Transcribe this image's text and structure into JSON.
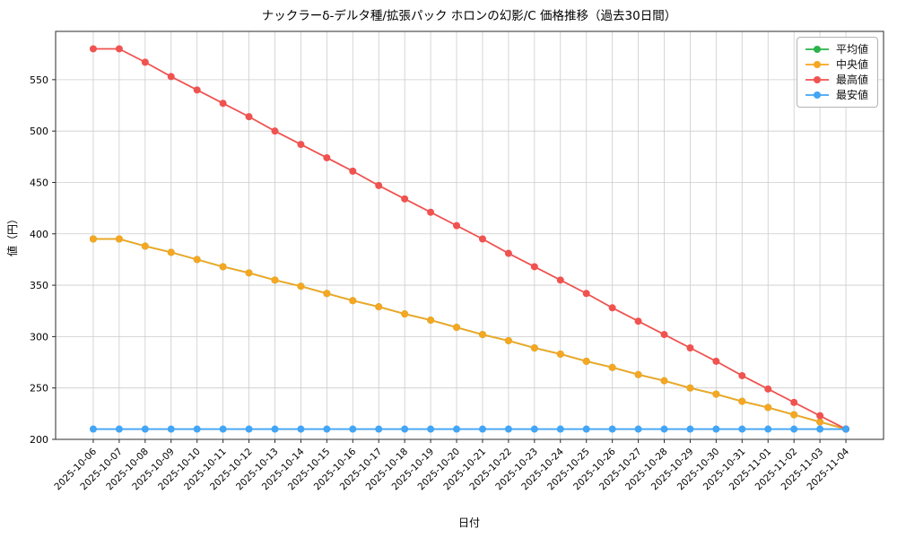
{
  "chart_data": {
    "type": "line",
    "title": "ナックラーδ-デルタ種/拡張パック ホロンの幻影/C 価格推移（過去30日間）",
    "xlabel": "日付",
    "ylabel": "値（円）",
    "x": [
      "2025-10-06",
      "2025-10-07",
      "2025-10-08",
      "2025-10-09",
      "2025-10-10",
      "2025-10-11",
      "2025-10-12",
      "2025-10-13",
      "2025-10-14",
      "2025-10-15",
      "2025-10-16",
      "2025-10-17",
      "2025-10-18",
      "2025-10-19",
      "2025-10-20",
      "2025-10-21",
      "2025-10-22",
      "2025-10-23",
      "2025-10-24",
      "2025-10-25",
      "2025-10-26",
      "2025-10-27",
      "2025-10-28",
      "2025-10-29",
      "2025-10-30",
      "2025-10-31",
      "2025-11-01",
      "2025-11-02",
      "2025-11-03",
      "2025-11-04"
    ],
    "yticks": [
      200,
      250,
      300,
      350,
      400,
      450,
      500,
      550
    ],
    "ylim": [
      200,
      597
    ],
    "grid": true,
    "legend_position": "upper right",
    "series": [
      {
        "key": "average",
        "name": "平均値",
        "color": "#2cb34a",
        "values": [
          395,
          395,
          388,
          382,
          375,
          368,
          362,
          355,
          349,
          342,
          335,
          329,
          322,
          316,
          309,
          302,
          296,
          289,
          283,
          276,
          270,
          263,
          257,
          250,
          244,
          237,
          231,
          224,
          217,
          210
        ]
      },
      {
        "key": "median",
        "name": "中央値",
        "color": "#f5a623",
        "values": [
          395,
          395,
          388,
          382,
          375,
          368,
          362,
          355,
          349,
          342,
          335,
          329,
          322,
          316,
          309,
          302,
          296,
          289,
          283,
          276,
          270,
          263,
          257,
          250,
          244,
          237,
          231,
          224,
          217,
          210
        ]
      },
      {
        "key": "max",
        "name": "最高値",
        "color": "#ef5350",
        "values": [
          580,
          580,
          567,
          553,
          540,
          527,
          514,
          500,
          487,
          474,
          461,
          447,
          434,
          421,
          408,
          395,
          381,
          368,
          355,
          342,
          328,
          315,
          302,
          289,
          276,
          262,
          249,
          236,
          223,
          210
        ]
      },
      {
        "key": "min",
        "name": "最安値",
        "color": "#42a5f5",
        "values": [
          210,
          210,
          210,
          210,
          210,
          210,
          210,
          210,
          210,
          210,
          210,
          210,
          210,
          210,
          210,
          210,
          210,
          210,
          210,
          210,
          210,
          210,
          210,
          210,
          210,
          210,
          210,
          210,
          210,
          210
        ]
      }
    ]
  }
}
